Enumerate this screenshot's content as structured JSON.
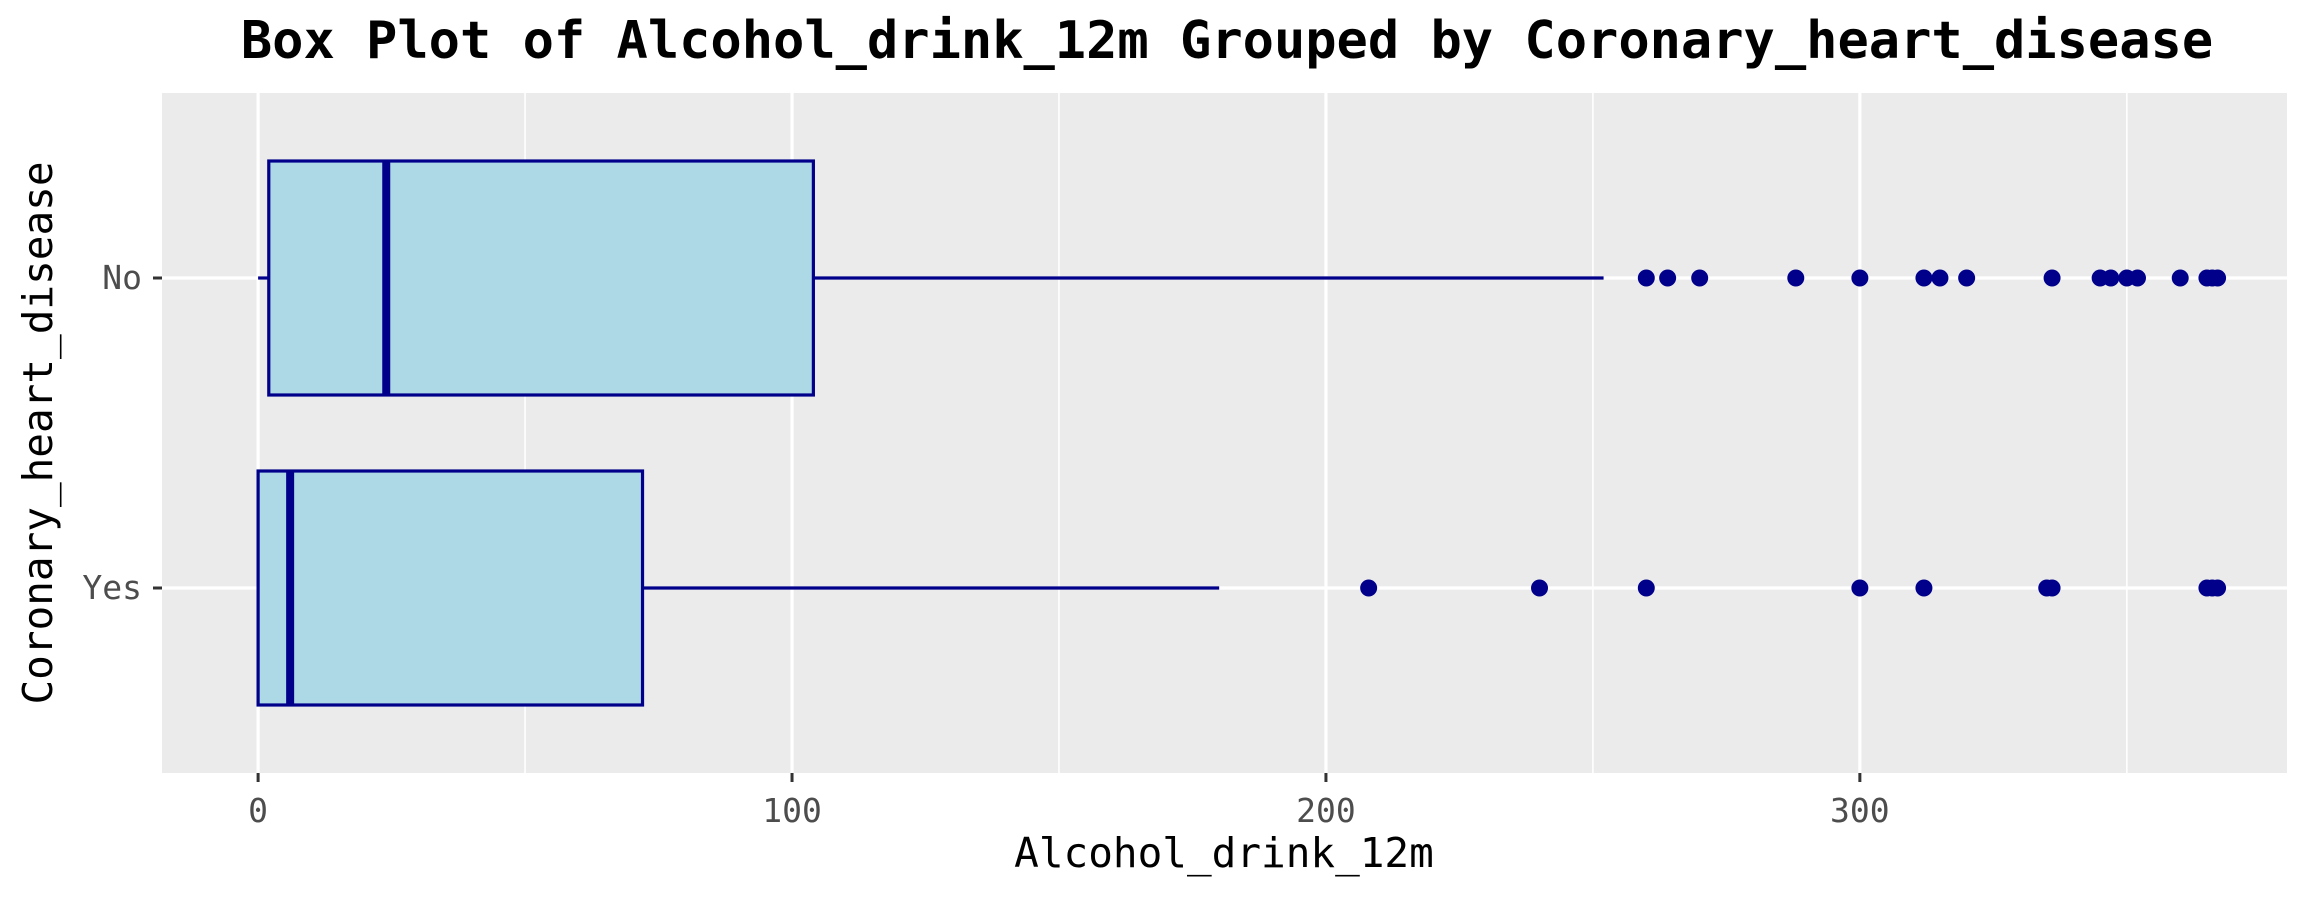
{
  "chart_data": {
    "type": "box",
    "title": "Box Plot of Alcohol_drink_12m Grouped by Coronary_heart_disease",
    "xlabel": "Alcohol_drink_12m",
    "ylabel": "Coronary_heart_disease",
    "orientation": "horizontal",
    "xlim": [
      -18,
      380
    ],
    "x_ticks": [
      0,
      100,
      200,
      300
    ],
    "x_tick_labels": [
      "0",
      "100",
      "200",
      "300"
    ],
    "categories": [
      "No",
      "Yes"
    ],
    "grid": true,
    "colors": {
      "panel_background": "#ebebeb",
      "grid": "#ffffff",
      "box_fill": "#add8e6",
      "box_stroke": "#00008b",
      "outlier": "#00008b"
    },
    "boxes": [
      {
        "category": "No",
        "whisker_low": 0,
        "q1": 2,
        "median": 24,
        "q3": 104,
        "whisker_high": 252,
        "outliers": [
          260,
          264,
          270,
          288,
          300,
          312,
          315,
          320,
          336,
          345,
          347,
          350,
          352,
          360,
          365,
          366,
          367
        ]
      },
      {
        "category": "Yes",
        "whisker_low": 0,
        "q1": 0,
        "median": 6,
        "q3": 72,
        "whisker_high": 180,
        "outliers": [
          208,
          240,
          260,
          300,
          312,
          335,
          336,
          365,
          366,
          367
        ]
      }
    ]
  }
}
